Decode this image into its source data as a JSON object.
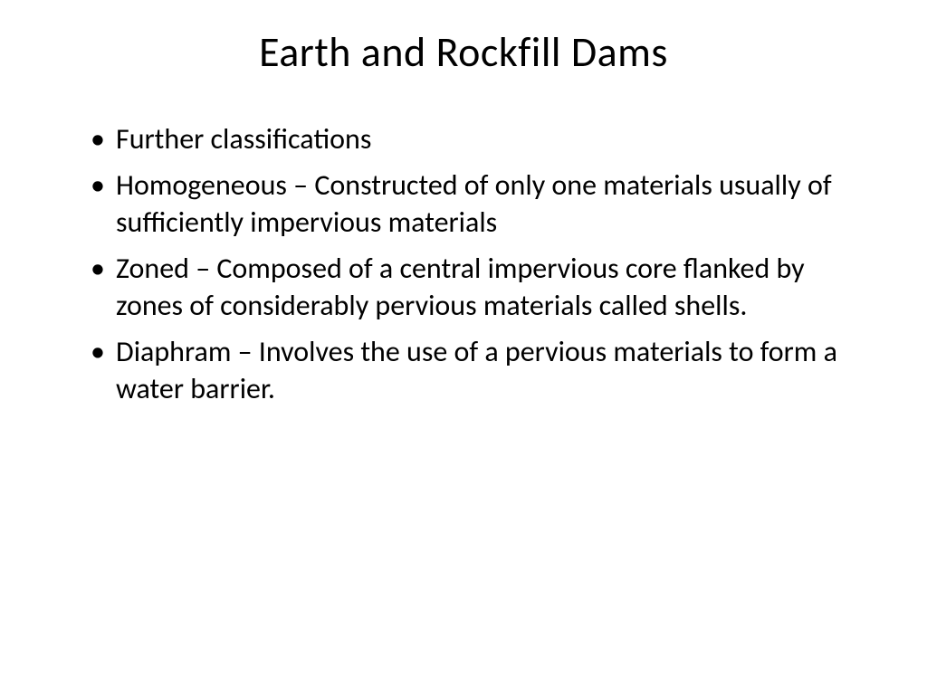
{
  "slide": {
    "title": "Earth and Rockfill Dams",
    "title_fontsize": 46,
    "title_color": "#000000",
    "body_fontsize": 32,
    "body_color": "#000000",
    "background_color": "#ffffff",
    "bullets": [
      "Further classifications",
      "Homogeneous – Constructed of only one materials usually of sufficiently impervious materials",
      "Zoned – Composed of a central impervious core flanked by zones of considerably pervious materials called shells.",
      "Diaphram – Involves the use of a pervious materials to form a water barrier."
    ]
  }
}
